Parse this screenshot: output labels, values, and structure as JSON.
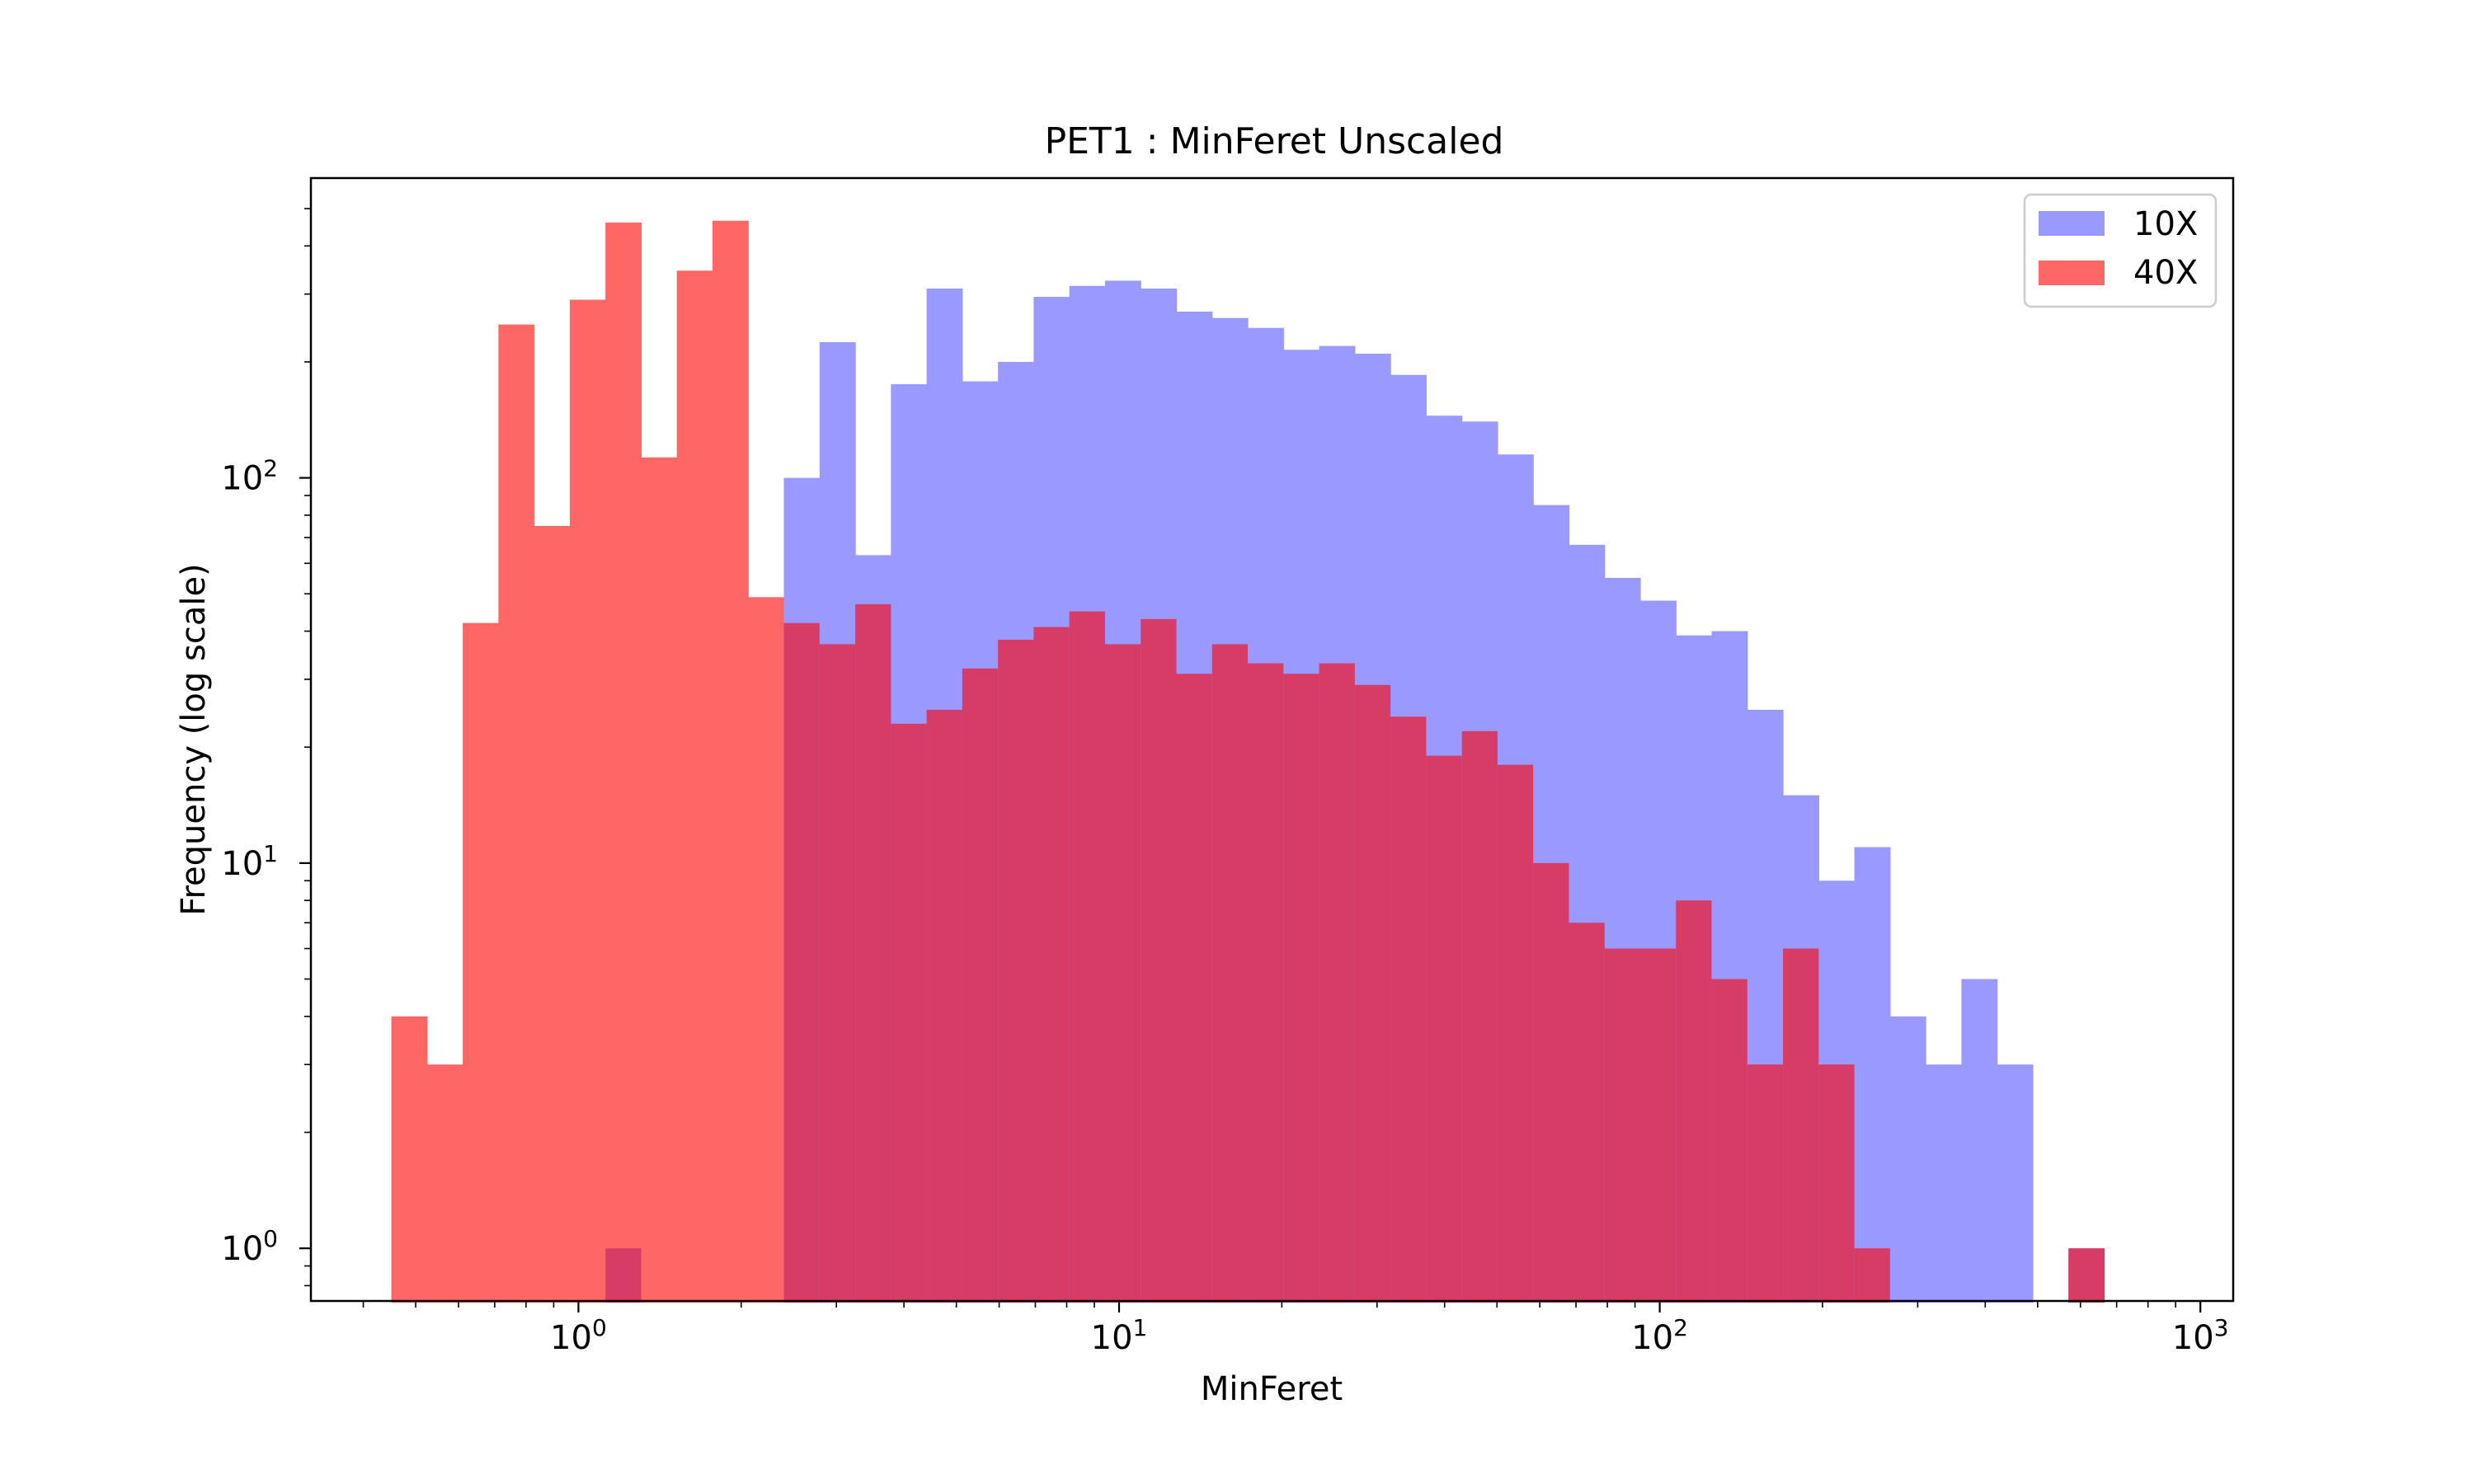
{
  "chart_data": {
    "type": "bar",
    "title": "PET1 : MinFeret Unscaled",
    "xlabel": "MinFeret",
    "ylabel": "Frequency (log scale)",
    "xscale": "log",
    "yscale": "log",
    "xlim": [
      0.32,
      1150
    ],
    "ylim": [
      0.73,
      600
    ],
    "x_ticks": [
      {
        "value": 1,
        "base": "10",
        "exp": "0"
      },
      {
        "value": 10,
        "base": "10",
        "exp": "1"
      },
      {
        "value": 100,
        "base": "10",
        "exp": "2"
      },
      {
        "value": 1000,
        "base": "10",
        "exp": "3"
      }
    ],
    "y_ticks": [
      {
        "value": 1,
        "base": "10",
        "exp": "0"
      },
      {
        "value": 10,
        "base": "10",
        "exp": "1"
      },
      {
        "value": 100,
        "base": "10",
        "exp": "2"
      }
    ],
    "bin_edges_log10": [
      -0.346,
      -0.28,
      -0.214,
      -0.148,
      -0.082,
      -0.016,
      0.05,
      0.116,
      0.182,
      0.248,
      0.314,
      0.38,
      0.446,
      0.512,
      0.578,
      0.644,
      0.71,
      0.776,
      0.842,
      0.908,
      0.974,
      1.04,
      1.106,
      1.172,
      1.238,
      1.304,
      1.37,
      1.436,
      1.502,
      1.568,
      1.634,
      1.7,
      1.766,
      1.832,
      1.898,
      1.964,
      2.03,
      2.096,
      2.162,
      2.228,
      2.294,
      2.36,
      2.426,
      2.492,
      2.558,
      2.624,
      2.69,
      2.756,
      2.822,
      2.888,
      2.954
    ],
    "legend_position": "top-right",
    "grid": false,
    "series": [
      {
        "name": "10X",
        "color": "#9999ff",
        "values": [
          0,
          0,
          0,
          0,
          0,
          0,
          1,
          0,
          0,
          0,
          0,
          100,
          225,
          63,
          175,
          310,
          178,
          200,
          295,
          315,
          325,
          310,
          270,
          260,
          245,
          215,
          220,
          210,
          185,
          145,
          140,
          115,
          85,
          67,
          55,
          48,
          39,
          40,
          25,
          15,
          9,
          11,
          4,
          3,
          5,
          3,
          0,
          1,
          0,
          0
        ]
      },
      {
        "name": "40X",
        "color": "#ff6666",
        "values": [
          4,
          3,
          42,
          250,
          75,
          290,
          460,
          113,
          345,
          465,
          49,
          42,
          37,
          47,
          23,
          25,
          32,
          38,
          41,
          45,
          37,
          43,
          31,
          37,
          33,
          31,
          33,
          29,
          24,
          19,
          22,
          18,
          10,
          7,
          6,
          6,
          8,
          5,
          3,
          6,
          3,
          1,
          0,
          0,
          0,
          0,
          0,
          1,
          0,
          0
        ]
      }
    ],
    "overlap_color": "#d63c66"
  }
}
